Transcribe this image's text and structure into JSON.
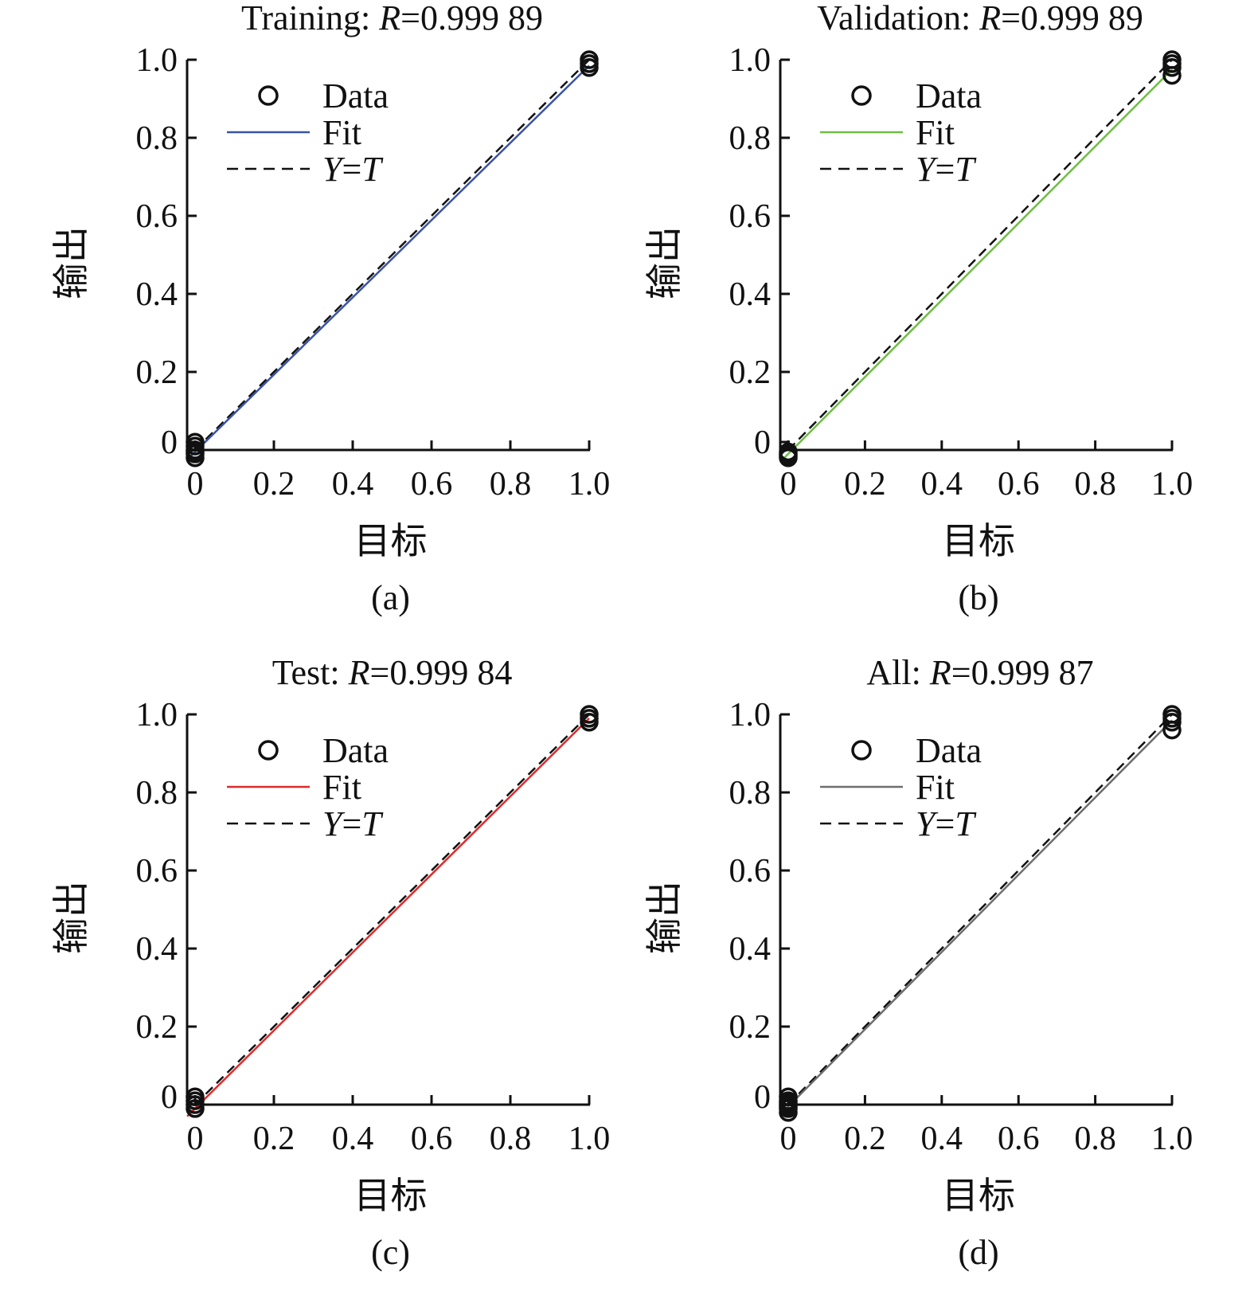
{
  "colors": {
    "axis": "#111111",
    "marker": "#111111",
    "reference_line": "#111111",
    "fit_a": "#3a53a4",
    "fit_b": "#6dbe45",
    "fit_c": "#e02a2a",
    "fit_d": "#6e6e6e"
  },
  "chart_data": [
    {
      "type": "scatter",
      "panel_label": "(a)",
      "title": {
        "prefix": "Training: ",
        "var": "R",
        "eq": "=",
        "value": "0.999 89"
      },
      "xlabel": "目标",
      "ylabel": "输出",
      "xlim": [
        0,
        1
      ],
      "ylim": [
        0,
        1
      ],
      "x_ticks": [
        "0",
        "0.2",
        "0.4",
        "0.6",
        "0.8",
        "1.0"
      ],
      "y_ticks": [
        "0",
        "0.2",
        "0.4",
        "0.6",
        "0.8",
        "1.0"
      ],
      "grid": false,
      "legend": {
        "position": "top-left",
        "data": "Data",
        "fit": "Fit",
        "ref_var1": "Y",
        "ref_eq": "=",
        "ref_var2": "T"
      },
      "fit_line": {
        "slope": 0.99,
        "intercept": -0.005,
        "color": "#3a53a4"
      },
      "reference_line": {
        "slope": 1,
        "intercept": 0
      },
      "points": [
        [
          0,
          0.01
        ],
        [
          0,
          0.0
        ],
        [
          0,
          -0.005
        ],
        [
          0,
          -0.01
        ],
        [
          0,
          -0.02
        ],
        [
          0,
          0.02
        ],
        [
          1,
          0.98
        ],
        [
          1,
          0.99
        ],
        [
          1,
          1.0
        ]
      ]
    },
    {
      "type": "scatter",
      "panel_label": "(b)",
      "title": {
        "prefix": "Validation: ",
        "var": "R",
        "eq": "=",
        "value": "0.999 89"
      },
      "xlabel": "目标",
      "ylabel": "输出",
      "xlim": [
        0,
        1
      ],
      "ylim": [
        0,
        1
      ],
      "x_ticks": [
        "0",
        "0.2",
        "0.4",
        "0.6",
        "0.8",
        "1.0"
      ],
      "y_ticks": [
        "0",
        "0.2",
        "0.4",
        "0.6",
        "0.8",
        "1.0"
      ],
      "grid": false,
      "legend": {
        "position": "top-left",
        "data": "Data",
        "fit": "Fit",
        "ref_var1": "Y",
        "ref_eq": "=",
        "ref_var2": "T"
      },
      "fit_line": {
        "slope": 0.985,
        "intercept": -0.01,
        "color": "#6dbe45"
      },
      "reference_line": {
        "slope": 1,
        "intercept": 0
      },
      "points": [
        [
          0,
          -0.005
        ],
        [
          0,
          -0.01
        ],
        [
          0,
          -0.015
        ],
        [
          0,
          -0.02
        ],
        [
          1,
          0.96
        ],
        [
          1,
          0.98
        ],
        [
          1,
          0.99
        ],
        [
          1,
          1.0
        ]
      ]
    },
    {
      "type": "scatter",
      "panel_label": "(c)",
      "title": {
        "prefix": "Test: ",
        "var": "R",
        "eq": "=",
        "value": "0.999 84"
      },
      "xlabel": "目标",
      "ylabel": "输出",
      "xlim": [
        0,
        1
      ],
      "ylim": [
        0,
        1
      ],
      "x_ticks": [
        "0",
        "0.2",
        "0.4",
        "0.6",
        "0.8",
        "1.0"
      ],
      "y_ticks": [
        "0",
        "0.2",
        "0.4",
        "0.6",
        "0.8",
        "1.0"
      ],
      "grid": false,
      "legend": {
        "position": "top-left",
        "data": "Data",
        "fit": "Fit",
        "ref_var1": "Y",
        "ref_eq": "=",
        "ref_var2": "T"
      },
      "fit_line": {
        "slope": 1.0,
        "intercept": -0.01,
        "color": "#e02a2a"
      },
      "reference_line": {
        "slope": 1,
        "intercept": 0
      },
      "points": [
        [
          0,
          0.02
        ],
        [
          0,
          0.01
        ],
        [
          0,
          0.0
        ],
        [
          0,
          -0.01
        ],
        [
          1,
          0.98
        ],
        [
          1,
          0.99
        ],
        [
          1,
          1.0
        ]
      ]
    },
    {
      "type": "scatter",
      "panel_label": "(d)",
      "title": {
        "prefix": "All: ",
        "var": "R",
        "eq": "=",
        "value": "0.999 87"
      },
      "xlabel": "目标",
      "ylabel": "输出",
      "xlim": [
        0,
        1
      ],
      "ylim": [
        0,
        1
      ],
      "x_ticks": [
        "0",
        "0.2",
        "0.4",
        "0.6",
        "0.8",
        "1.0"
      ],
      "y_ticks": [
        "0",
        "0.2",
        "0.4",
        "0.6",
        "0.8",
        "1.0"
      ],
      "grid": false,
      "legend": {
        "position": "top-left",
        "data": "Data",
        "fit": "Fit",
        "ref_var1": "Y",
        "ref_eq": "=",
        "ref_var2": "T"
      },
      "fit_line": {
        "slope": 0.99,
        "intercept": -0.005,
        "color": "#6e6e6e"
      },
      "reference_line": {
        "slope": 1,
        "intercept": 0
      },
      "points": [
        [
          0,
          0.02
        ],
        [
          0,
          0.01
        ],
        [
          0,
          0.005
        ],
        [
          0,
          0.0
        ],
        [
          0,
          -0.005
        ],
        [
          0,
          -0.01
        ],
        [
          0,
          -0.02
        ],
        [
          1,
          0.96
        ],
        [
          1,
          0.98
        ],
        [
          1,
          0.99
        ],
        [
          1,
          1.0
        ]
      ]
    }
  ]
}
